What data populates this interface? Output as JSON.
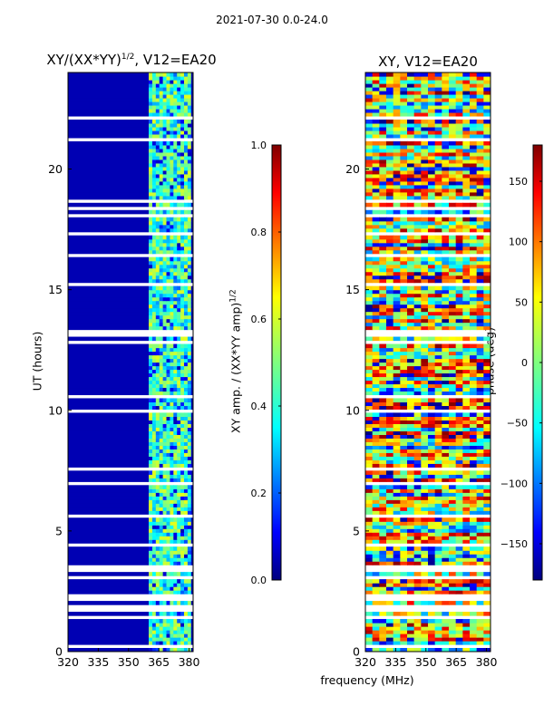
{
  "figure": {
    "suptitle": "2021-07-30 0.0-24.0",
    "xlabel": "frequency (MHz)"
  },
  "colors": {
    "jet_dark_blue": "#00007f",
    "jet_blue": "#0000ff",
    "jet_cyan": "#00ffff",
    "jet_yellow": "#ffff00",
    "jet_red": "#ff0000",
    "jet_dark_red": "#7f0000",
    "gap": "#ffffff"
  },
  "chart_data": [
    {
      "type": "heatmap",
      "title_main": "XY/(XX*YY)",
      "title_exp": "1/2",
      "title_tail": ", V12=EA20",
      "xlabel": "",
      "ylabel": "UT (hours)",
      "xlim": [
        320,
        382
      ],
      "ylim": [
        0,
        24
      ],
      "x_ticks": [
        320,
        335,
        350,
        365,
        380
      ],
      "y_ticks": [
        0,
        5,
        10,
        15,
        20
      ],
      "colorbar": {
        "label_main": "XY amp. / (XX*YY amp)",
        "label_exp": "1/2",
        "range": [
          0.0,
          1.0
        ],
        "ticks": [
          0.0,
          0.2,
          0.4,
          0.6,
          0.8,
          1.0
        ],
        "tick_labels": [
          "0.0",
          "0.2",
          "0.4",
          "0.6",
          "0.8",
          "1.0"
        ]
      },
      "bright_band_mhz": [
        360,
        381
      ],
      "background_value": 0.05,
      "band_value_range": [
        0.3,
        0.6
      ]
    },
    {
      "type": "heatmap",
      "title_main": "XY, V12=EA20",
      "xlabel": "",
      "ylabel": "",
      "xlim": [
        320,
        382
      ],
      "ylim": [
        0,
        24
      ],
      "x_ticks": [
        320,
        335,
        350,
        365,
        380
      ],
      "y_ticks": [
        0,
        5,
        10,
        15,
        20
      ],
      "colorbar": {
        "label_main": "phase (deg)",
        "range": [
          -180,
          180
        ],
        "ticks": [
          -150,
          -100,
          -50,
          0,
          50,
          100,
          150
        ],
        "tick_labels": [
          "−150",
          "−100",
          "−50",
          "0",
          "50",
          "100",
          "150"
        ]
      },
      "value_range": [
        -180,
        180
      ]
    }
  ],
  "data_gaps_hours": [
    [
      0.2,
      0.25
    ],
    [
      1.3,
      1.45
    ],
    [
      1.65,
      2.0
    ],
    [
      2.15,
      2.35
    ],
    [
      3.05,
      3.15
    ],
    [
      3.35,
      3.6
    ],
    [
      3.7,
      3.8
    ],
    [
      4.4,
      4.5
    ],
    [
      5.2,
      5.3
    ],
    [
      5.55,
      5.65
    ],
    [
      6.4,
      6.5
    ],
    [
      6.9,
      7.0
    ],
    [
      7.55,
      7.65
    ],
    [
      8.2,
      8.3
    ],
    [
      9.9,
      10.0
    ],
    [
      10.55,
      10.65
    ],
    [
      11.2,
      11.3
    ],
    [
      11.55,
      11.6
    ],
    [
      12.8,
      12.9
    ],
    [
      13.05,
      13.4
    ],
    [
      13.9,
      14.0
    ],
    [
      15.2,
      15.3
    ],
    [
      16.35,
      16.45
    ],
    [
      17.25,
      17.35
    ],
    [
      17.65,
      17.75
    ],
    [
      18.0,
      18.1
    ],
    [
      18.35,
      18.45
    ],
    [
      18.6,
      18.8
    ],
    [
      19.3,
      19.35
    ],
    [
      20.5,
      20.55
    ],
    [
      21.2,
      21.25
    ],
    [
      22.1,
      22.15
    ],
    [
      22.6,
      22.7
    ]
  ]
}
